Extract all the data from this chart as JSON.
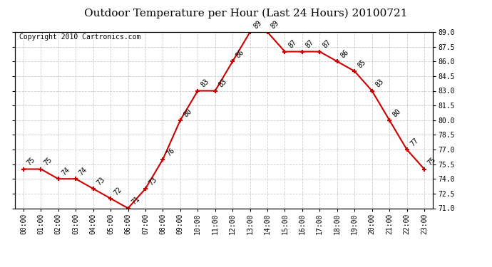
{
  "title": "Outdoor Temperature per Hour (Last 24 Hours) 20100721",
  "copyright": "Copyright 2010 Cartronics.com",
  "hours": [
    "00:00",
    "01:00",
    "02:00",
    "03:00",
    "04:00",
    "05:00",
    "06:00",
    "07:00",
    "08:00",
    "09:00",
    "10:00",
    "11:00",
    "12:00",
    "13:00",
    "14:00",
    "15:00",
    "16:00",
    "17:00",
    "18:00",
    "19:00",
    "20:00",
    "21:00",
    "22:00",
    "23:00"
  ],
  "temps": [
    75,
    75,
    74,
    74,
    73,
    72,
    71,
    73,
    76,
    80,
    83,
    83,
    86,
    89,
    89,
    87,
    87,
    87,
    86,
    85,
    83,
    80,
    77,
    75
  ],
  "line_color": "#cc0000",
  "marker": "+",
  "marker_size": 5,
  "marker_linewidth": 1.5,
  "line_width": 1.5,
  "grid_color": "#cccccc",
  "grid_style": "--",
  "bg_color": "#ffffff",
  "ylim_min": 71.0,
  "ylim_max": 89.0,
  "ytick_step": 1.5,
  "label_fontsize": 7,
  "title_fontsize": 11,
  "copyright_fontsize": 7,
  "tick_fontsize": 7,
  "annot_fontsize": 7
}
